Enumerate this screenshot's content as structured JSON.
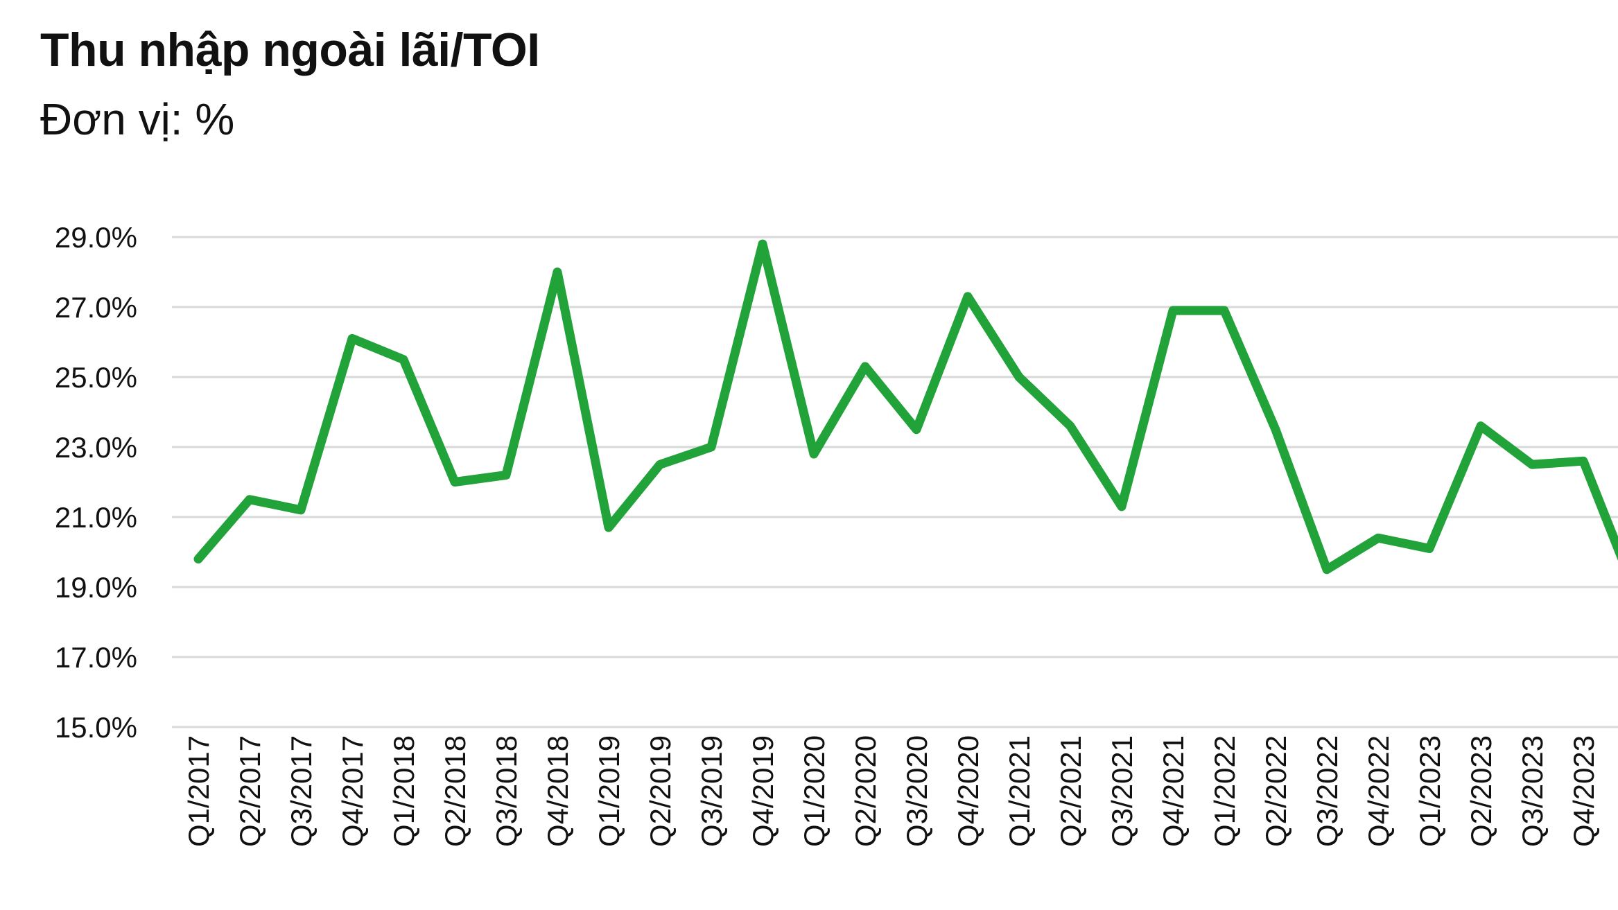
{
  "chart_data": {
    "type": "line",
    "title": "Thu nhập ngoài lãi/TOI",
    "subtitle": "Đơn vị: %",
    "xlabel": "",
    "ylabel": "",
    "ylim": [
      15,
      29
    ],
    "y_ticks": [
      "29.0%",
      "27.0%",
      "25.0%",
      "23.0%",
      "21.0%",
      "19.0%",
      "17.0%",
      "15.0%"
    ],
    "y_tick_values": [
      29,
      27,
      25,
      23,
      21,
      19,
      17,
      15
    ],
    "grid": true,
    "legend": "none",
    "line_color": "#22a33a",
    "grid_color": "#d9d9d9",
    "categories": [
      "Q1/2017",
      "Q2/2017",
      "Q3/2017",
      "Q4/2017",
      "Q1/2018",
      "Q2/2018",
      "Q3/2018",
      "Q4/2018",
      "Q1/2019",
      "Q2/2019",
      "Q3/2019",
      "Q4/2019",
      "Q1/2020",
      "Q2/2020",
      "Q3/2020",
      "Q4/2020",
      "Q1/2021",
      "Q2/2021",
      "Q3/2021",
      "Q4/2021",
      "Q1/2022",
      "Q2/2022",
      "Q3/2022",
      "Q4/2022",
      "Q1/2023",
      "Q2/2023",
      "Q3/2023",
      "Q4/2023"
    ],
    "series": [
      {
        "values": [
          19.8,
          21.5,
          21.2,
          26.1,
          25.5,
          22.0,
          22.2,
          28.0,
          20.7,
          22.5,
          23.0,
          28.8,
          22.8,
          25.3,
          23.5,
          27.3,
          25.0,
          23.6,
          21.3,
          26.9,
          26.9,
          23.5,
          19.5,
          20.4,
          20.1,
          23.6,
          22.5,
          22.6
        ]
      }
    ],
    "trailing_value": 20.1
  }
}
